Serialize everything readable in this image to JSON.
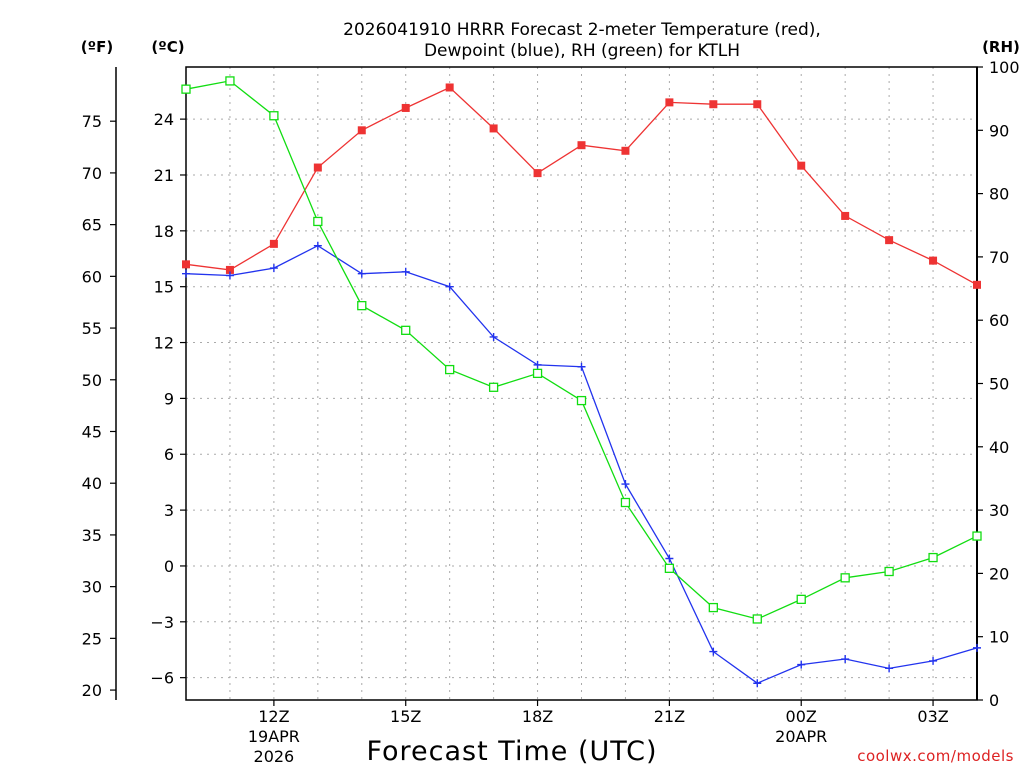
{
  "chart_data": {
    "type": "line",
    "title_line1": "2026041910 HRRR Forecast 2-meter Temperature (red),",
    "title_line2": "Dewpoint (blue), RH (green) for KTLH",
    "xlabel": "Forecast Time (UTC)",
    "unit_f": "(ºF)",
    "unit_c": "(ºC)",
    "unit_rh": "(RH)",
    "credit": "coolwx.com/models",
    "colors": {
      "temp": "#ee3333",
      "dewpoint": "#2233ee",
      "rh": "#11dd11",
      "grid": "#aaaaaa",
      "axis": "#000000"
    },
    "x_hours": [
      10,
      11,
      12,
      13,
      14,
      15,
      16,
      17,
      18,
      19,
      20,
      21,
      22,
      23,
      24,
      25,
      26,
      27,
      28
    ],
    "x_ticks": [
      {
        "hour": 12,
        "label": "12Z",
        "sub1": "19APR",
        "sub2": "2026"
      },
      {
        "hour": 15,
        "label": "15Z",
        "sub1": "",
        "sub2": ""
      },
      {
        "hour": 18,
        "label": "18Z",
        "sub1": "",
        "sub2": ""
      },
      {
        "hour": 21,
        "label": "21Z",
        "sub1": "",
        "sub2": ""
      },
      {
        "hour": 24,
        "label": "00Z",
        "sub1": "20APR",
        "sub2": ""
      },
      {
        "hour": 27,
        "label": "03Z",
        "sub1": "",
        "sub2": ""
      }
    ],
    "c_ylim": [
      -7.2,
      26.8
    ],
    "c_ticks": [
      24,
      21,
      18,
      15,
      12,
      9,
      6,
      3,
      0,
      -3,
      -6
    ],
    "f_ticks": [
      75,
      70,
      65,
      60,
      55,
      50,
      45,
      40,
      35,
      30,
      25,
      20
    ],
    "rh_ylim": [
      0,
      100
    ],
    "rh_ticks": [
      100,
      90,
      80,
      70,
      60,
      50,
      40,
      30,
      20,
      10,
      0
    ],
    "series": [
      {
        "name": "Temperature",
        "units": "C",
        "values": [
          16.2,
          15.9,
          17.3,
          21.4,
          23.4,
          24.6,
          25.7,
          23.5,
          21.1,
          22.6,
          22.3,
          24.9,
          24.8,
          24.8,
          21.5,
          18.8,
          17.5,
          16.4,
          15.1
        ]
      },
      {
        "name": "Dewpoint",
        "units": "C",
        "values": [
          15.7,
          15.6,
          16.0,
          17.2,
          15.7,
          15.8,
          15.0,
          12.3,
          10.8,
          10.7,
          4.4,
          0.4,
          -4.6,
          -6.3,
          -5.3,
          -5.0,
          -5.5,
          -5.1,
          -4.4
        ]
      },
      {
        "name": "RH",
        "units": "%",
        "values": [
          96.5,
          97.8,
          92.3,
          75.6,
          62.3,
          58.4,
          52.2,
          49.4,
          51.6,
          47.3,
          31.2,
          20.8,
          14.6,
          12.8,
          15.9,
          19.3,
          20.3,
          22.5,
          25.9
        ]
      }
    ]
  }
}
